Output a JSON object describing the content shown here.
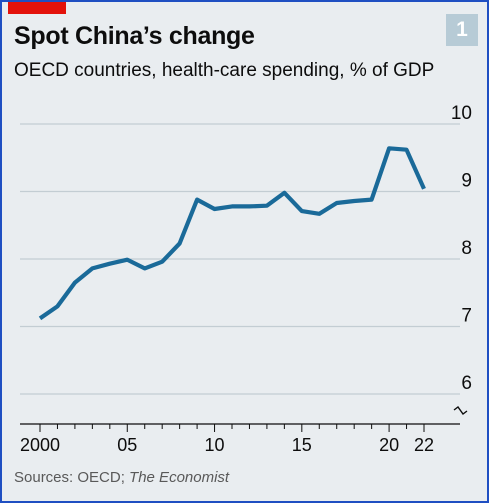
{
  "header": {
    "chart_number": "1",
    "title": "Spot China’s change",
    "subtitle": "OECD countries, health-care spending, % of GDP"
  },
  "footer": {
    "source_prefix": "Sources: OECD; ",
    "source_publication": "The Economist"
  },
  "colors": {
    "line": "#1a6a99",
    "background": "#e9edf0",
    "accent_red": "#e3120b",
    "frame": "#1f4fc2"
  },
  "chart_data": {
    "type": "line",
    "title": "Spot China’s change",
    "subtitle": "OECD countries, health-care spending, % of GDP",
    "xlabel": "",
    "ylabel": "",
    "xlim": [
      2000,
      2022
    ],
    "ylim": [
      6,
      10
    ],
    "y_axis_break": true,
    "grid": "horizontal",
    "x_ticks": [
      2000,
      2005,
      2010,
      2015,
      2020,
      2022
    ],
    "x_tick_labels": [
      "2000",
      "05",
      "10",
      "15",
      "20",
      "22"
    ],
    "y_ticks": [
      6,
      7,
      8,
      9,
      10
    ],
    "y_tick_labels": [
      "6",
      "7",
      "8",
      "9",
      "10"
    ],
    "x": [
      2000,
      2001,
      2002,
      2003,
      2004,
      2005,
      2006,
      2007,
      2008,
      2009,
      2010,
      2011,
      2012,
      2013,
      2014,
      2015,
      2016,
      2017,
      2018,
      2019,
      2020,
      2021,
      2022
    ],
    "values": [
      7.12,
      7.3,
      7.65,
      7.86,
      7.93,
      7.99,
      7.86,
      7.96,
      8.23,
      8.88,
      8.74,
      8.78,
      8.78,
      8.79,
      8.98,
      8.71,
      8.67,
      8.83,
      8.86,
      8.88,
      9.64,
      9.62,
      9.04
    ]
  }
}
